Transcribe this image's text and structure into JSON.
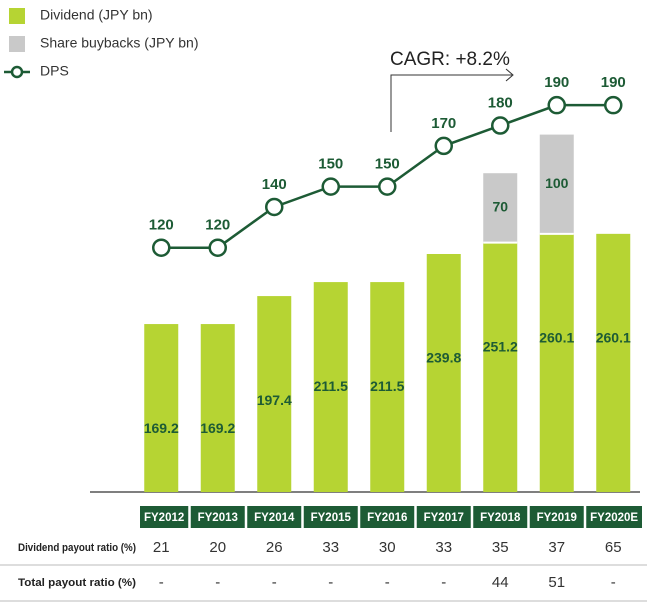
{
  "chart_data": {
    "type": "bar",
    "categories": [
      "FY2012",
      "FY2013",
      "FY2014",
      "FY2015",
      "FY2016",
      "FY2017",
      "FY2018",
      "FY2019",
      "FY2020E"
    ],
    "series": [
      {
        "name": "Dividend (JPY bn)",
        "color": "#b6d433",
        "values": [
          169.2,
          169.2,
          197.4,
          211.5,
          211.5,
          239.8,
          251.2,
          260.1,
          260.1
        ]
      },
      {
        "name": "Share buybacks (JPY bn)",
        "color": "#c9c9c9",
        "values": [
          null,
          null,
          null,
          null,
          null,
          null,
          70,
          100,
          null
        ]
      },
      {
        "name": "DPS",
        "color": "#1d5b35",
        "axis": "y2",
        "values": [
          120,
          120,
          140,
          150,
          150,
          170,
          180,
          190,
          190
        ]
      }
    ],
    "ylim": [
      0,
      400
    ],
    "y2lim": [
      0,
      195
    ],
    "annotation": "CAGR: +8.2%",
    "table": {
      "rows": [
        {
          "label": "Dividend payout ratio (%)",
          "values": [
            21,
            20,
            26,
            33,
            30,
            33,
            35,
            37,
            65
          ]
        },
        {
          "label": "Total payout ratio (%)",
          "values": [
            "-",
            "-",
            "-",
            "-",
            "-",
            "-",
            44,
            51,
            "-"
          ]
        }
      ]
    }
  }
}
